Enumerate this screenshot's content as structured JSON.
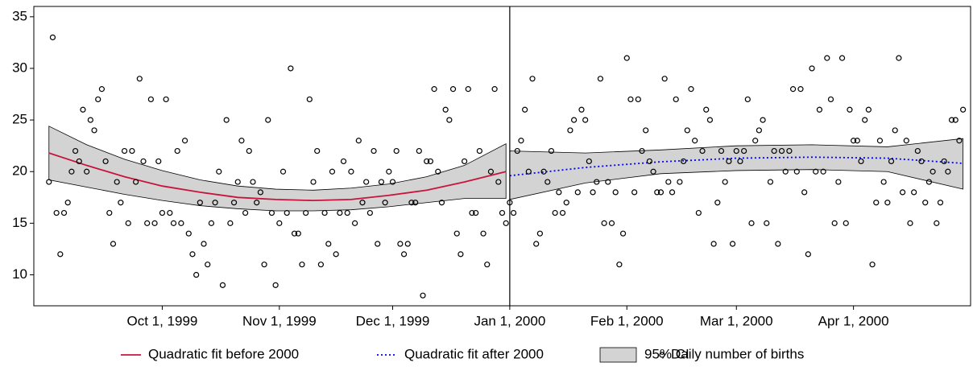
{
  "chart_data": {
    "type": "scatter",
    "xlim": [
      "1999-08-28",
      "2000-05-02"
    ],
    "ylim": [
      7,
      36
    ],
    "xticks": [
      {
        "value": "1999-10-01",
        "label": "Oct 1, 1999"
      },
      {
        "value": "1999-11-01",
        "label": "Nov 1, 1999"
      },
      {
        "value": "1999-12-01",
        "label": "Dec 1, 1999"
      },
      {
        "value": "2000-01-01",
        "label": "Jan 1, 2000"
      },
      {
        "value": "2000-02-01",
        "label": "Feb 1, 2000"
      },
      {
        "value": "2000-03-01",
        "label": "Mar 1, 2000"
      },
      {
        "value": "2000-04-01",
        "label": "Apr 1, 2000"
      }
    ],
    "yticks": [
      10,
      15,
      20,
      25,
      30,
      35
    ],
    "xline": "2000-01-01",
    "legend": "bottom",
    "series": [
      {
        "name": "Quadratic fit before 2000",
        "type": "line",
        "color": "#c8143c",
        "dash": "solid",
        "x": [
          "1999-09-01",
          "1999-09-11",
          "1999-09-21",
          "1999-10-01",
          "1999-10-11",
          "1999-10-21",
          "1999-10-31",
          "1999-11-10",
          "1999-11-20",
          "1999-11-30",
          "1999-12-10",
          "1999-12-20",
          "1999-12-31"
        ],
        "values": [
          21.8,
          20.6,
          19.5,
          18.6,
          18.0,
          17.5,
          17.3,
          17.2,
          17.3,
          17.7,
          18.2,
          19.0,
          20.0
        ]
      },
      {
        "name": "Quadratic fit after 2000",
        "type": "line",
        "color": "#0000ff",
        "dash": "dotted",
        "x": [
          "2000-01-01",
          "2000-01-21",
          "2000-02-10",
          "2000-03-01",
          "2000-03-21",
          "2000-04-10",
          "2000-04-30"
        ],
        "values": [
          19.6,
          20.4,
          20.95,
          21.3,
          21.4,
          21.3,
          20.8
        ]
      },
      {
        "name": "95% CI",
        "type": "band",
        "color": "#d3d3d3",
        "pieces": [
          {
            "x": [
              "1999-09-01",
              "1999-09-11",
              "1999-09-21",
              "1999-10-01",
              "1999-10-11",
              "1999-10-21",
              "1999-10-31",
              "1999-11-10",
              "1999-11-20",
              "1999-11-30",
              "1999-12-10",
              "1999-12-20",
              "1999-12-31"
            ],
            "upper": [
              24.4,
              22.6,
              21.2,
              20.1,
              19.2,
              18.6,
              18.3,
              18.2,
              18.4,
              18.8,
              19.5,
              20.6,
              22.7
            ],
            "lower": [
              19.2,
              18.5,
              17.8,
              17.2,
              16.7,
              16.4,
              16.2,
              16.2,
              16.3,
              16.6,
              17.0,
              17.4,
              17.4
            ]
          },
          {
            "x": [
              "2000-01-01",
              "2000-01-21",
              "2000-02-10",
              "2000-03-01",
              "2000-03-21",
              "2000-04-10",
              "2000-04-30"
            ],
            "upper": [
              22.0,
              21.8,
              22.1,
              22.5,
              22.6,
              22.4,
              23.2
            ],
            "lower": [
              17.3,
              18.9,
              19.8,
              20.1,
              20.2,
              20.0,
              18.3
            ]
          }
        ]
      },
      {
        "name": "Daily number of births",
        "type": "scatter",
        "color": "#000000",
        "x": [
          "1999-09-01",
          "1999-09-02",
          "1999-09-03",
          "1999-09-04",
          "1999-09-05",
          "1999-09-06",
          "1999-09-07",
          "1999-09-08",
          "1999-09-09",
          "1999-09-10",
          "1999-09-11",
          "1999-09-12",
          "1999-09-13",
          "1999-09-14",
          "1999-09-15",
          "1999-09-16",
          "1999-09-17",
          "1999-09-18",
          "1999-09-19",
          "1999-09-20",
          "1999-09-21",
          "1999-09-22",
          "1999-09-23",
          "1999-09-24",
          "1999-09-25",
          "1999-09-26",
          "1999-09-27",
          "1999-09-28",
          "1999-09-29",
          "1999-09-30",
          "1999-10-01",
          "1999-10-02",
          "1999-10-03",
          "1999-10-04",
          "1999-10-05",
          "1999-10-06",
          "1999-10-07",
          "1999-10-08",
          "1999-10-09",
          "1999-10-10",
          "1999-10-11",
          "1999-10-12",
          "1999-10-13",
          "1999-10-14",
          "1999-10-15",
          "1999-10-16",
          "1999-10-17",
          "1999-10-18",
          "1999-10-19",
          "1999-10-20",
          "1999-10-21",
          "1999-10-22",
          "1999-10-23",
          "1999-10-24",
          "1999-10-25",
          "1999-10-26",
          "1999-10-27",
          "1999-10-28",
          "1999-10-29",
          "1999-10-30",
          "1999-10-31",
          "1999-11-01",
          "1999-11-02",
          "1999-11-03",
          "1999-11-04",
          "1999-11-05",
          "1999-11-06",
          "1999-11-07",
          "1999-11-08",
          "1999-11-09",
          "1999-11-10",
          "1999-11-11",
          "1999-11-12",
          "1999-11-13",
          "1999-11-14",
          "1999-11-15",
          "1999-11-16",
          "1999-11-17",
          "1999-11-18",
          "1999-11-19",
          "1999-11-20",
          "1999-11-21",
          "1999-11-22",
          "1999-11-23",
          "1999-11-24",
          "1999-11-25",
          "1999-11-26",
          "1999-11-27",
          "1999-11-28",
          "1999-11-29",
          "1999-11-30",
          "1999-12-01",
          "1999-12-02",
          "1999-12-03",
          "1999-12-04",
          "1999-12-05",
          "1999-12-06",
          "1999-12-07",
          "1999-12-08",
          "1999-12-09",
          "1999-12-10",
          "1999-12-11",
          "1999-12-12",
          "1999-12-13",
          "1999-12-14",
          "1999-12-15",
          "1999-12-16",
          "1999-12-17",
          "1999-12-18",
          "1999-12-19",
          "1999-12-20",
          "1999-12-21",
          "1999-12-22",
          "1999-12-23",
          "1999-12-24",
          "1999-12-25",
          "1999-12-26",
          "1999-12-27",
          "1999-12-28",
          "1999-12-29",
          "1999-12-30",
          "1999-12-31",
          "2000-01-01",
          "2000-01-02",
          "2000-01-03",
          "2000-01-04",
          "2000-01-05",
          "2000-01-06",
          "2000-01-07",
          "2000-01-08",
          "2000-01-09",
          "2000-01-10",
          "2000-01-11",
          "2000-01-12",
          "2000-01-13",
          "2000-01-14",
          "2000-01-15",
          "2000-01-16",
          "2000-01-17",
          "2000-01-18",
          "2000-01-19",
          "2000-01-20",
          "2000-01-21",
          "2000-01-22",
          "2000-01-23",
          "2000-01-24",
          "2000-01-25",
          "2000-01-26",
          "2000-01-27",
          "2000-01-28",
          "2000-01-29",
          "2000-01-30",
          "2000-01-31",
          "2000-02-01",
          "2000-02-02",
          "2000-02-03",
          "2000-02-04",
          "2000-02-05",
          "2000-02-06",
          "2000-02-07",
          "2000-02-08",
          "2000-02-09",
          "2000-02-10",
          "2000-02-11",
          "2000-02-12",
          "2000-02-13",
          "2000-02-14",
          "2000-02-15",
          "2000-02-16",
          "2000-02-17",
          "2000-02-18",
          "2000-02-19",
          "2000-02-20",
          "2000-02-21",
          "2000-02-22",
          "2000-02-23",
          "2000-02-24",
          "2000-02-25",
          "2000-02-26",
          "2000-02-27",
          "2000-02-28",
          "2000-02-29",
          "2000-03-01",
          "2000-03-02",
          "2000-03-03",
          "2000-03-04",
          "2000-03-05",
          "2000-03-06",
          "2000-03-07",
          "2000-03-08",
          "2000-03-09",
          "2000-03-10",
          "2000-03-11",
          "2000-03-12",
          "2000-03-13",
          "2000-03-14",
          "2000-03-15",
          "2000-03-16",
          "2000-03-17",
          "2000-03-18",
          "2000-03-19",
          "2000-03-20",
          "2000-03-21",
          "2000-03-22",
          "2000-03-23",
          "2000-03-24",
          "2000-03-25",
          "2000-03-26",
          "2000-03-27",
          "2000-03-28",
          "2000-03-29",
          "2000-03-30",
          "2000-03-31",
          "2000-04-01",
          "2000-04-02",
          "2000-04-03",
          "2000-04-04",
          "2000-04-05",
          "2000-04-06",
          "2000-04-07",
          "2000-04-08",
          "2000-04-09",
          "2000-04-10",
          "2000-04-11",
          "2000-04-12",
          "2000-04-13",
          "2000-04-14",
          "2000-04-15",
          "2000-04-16",
          "2000-04-17",
          "2000-04-18",
          "2000-04-19",
          "2000-04-20",
          "2000-04-21",
          "2000-04-22",
          "2000-04-23",
          "2000-04-24",
          "2000-04-25",
          "2000-04-26",
          "2000-04-27",
          "2000-04-28",
          "2000-04-29",
          "2000-04-30"
        ],
        "values": [
          19,
          33,
          16,
          12,
          16,
          17,
          20,
          22,
          21,
          26,
          20,
          25,
          24,
          27,
          28,
          21,
          16,
          13,
          19,
          17,
          22,
          15,
          22,
          19,
          29,
          21,
          15,
          27,
          15,
          21,
          16,
          27,
          16,
          15,
          22,
          15,
          23,
          14,
          12,
          10,
          17,
          13,
          11,
          15,
          17,
          20,
          9,
          25,
          15,
          17,
          19,
          23,
          16,
          22,
          19,
          17,
          18,
          11,
          25,
          16,
          9,
          15,
          20,
          16,
          30,
          14,
          14,
          11,
          16,
          27,
          19,
          22,
          11,
          16,
          13,
          20,
          12,
          16,
          21,
          16,
          20,
          15,
          23,
          17,
          19,
          16,
          22,
          13,
          19,
          17,
          20,
          19,
          22,
          13,
          12,
          13,
          17,
          17,
          22,
          8,
          21,
          21,
          28,
          20,
          17,
          26,
          25,
          28,
          14,
          12,
          21,
          28,
          16,
          16,
          22,
          14,
          11,
          20,
          28,
          19,
          16,
          15,
          17,
          16,
          22,
          23,
          26,
          20,
          29,
          13,
          14,
          20,
          19,
          22,
          16,
          18,
          16,
          17,
          24,
          25,
          18,
          26,
          25,
          21,
          18,
          19,
          29,
          15,
          19,
          15,
          18,
          11,
          14,
          31,
          27,
          18,
          27,
          22,
          24,
          21,
          20,
          18,
          18,
          29,
          19,
          18,
          27,
          19,
          21,
          24,
          28,
          23,
          16,
          22,
          26,
          25,
          13,
          17,
          22,
          19,
          21,
          13,
          22,
          21,
          22,
          27,
          15,
          23,
          24,
          25,
          15,
          19,
          22,
          13,
          22,
          20,
          22,
          28,
          20,
          28,
          18,
          12,
          30,
          20,
          26,
          20,
          31,
          27,
          15,
          19,
          31,
          15,
          26,
          23,
          23,
          21,
          25,
          26,
          11,
          17,
          23,
          19,
          17,
          21,
          24,
          31,
          18,
          23,
          15,
          18,
          22,
          21,
          17,
          19,
          20,
          15,
          17,
          21,
          20,
          25,
          25,
          23,
          26
        ]
      }
    ]
  }
}
